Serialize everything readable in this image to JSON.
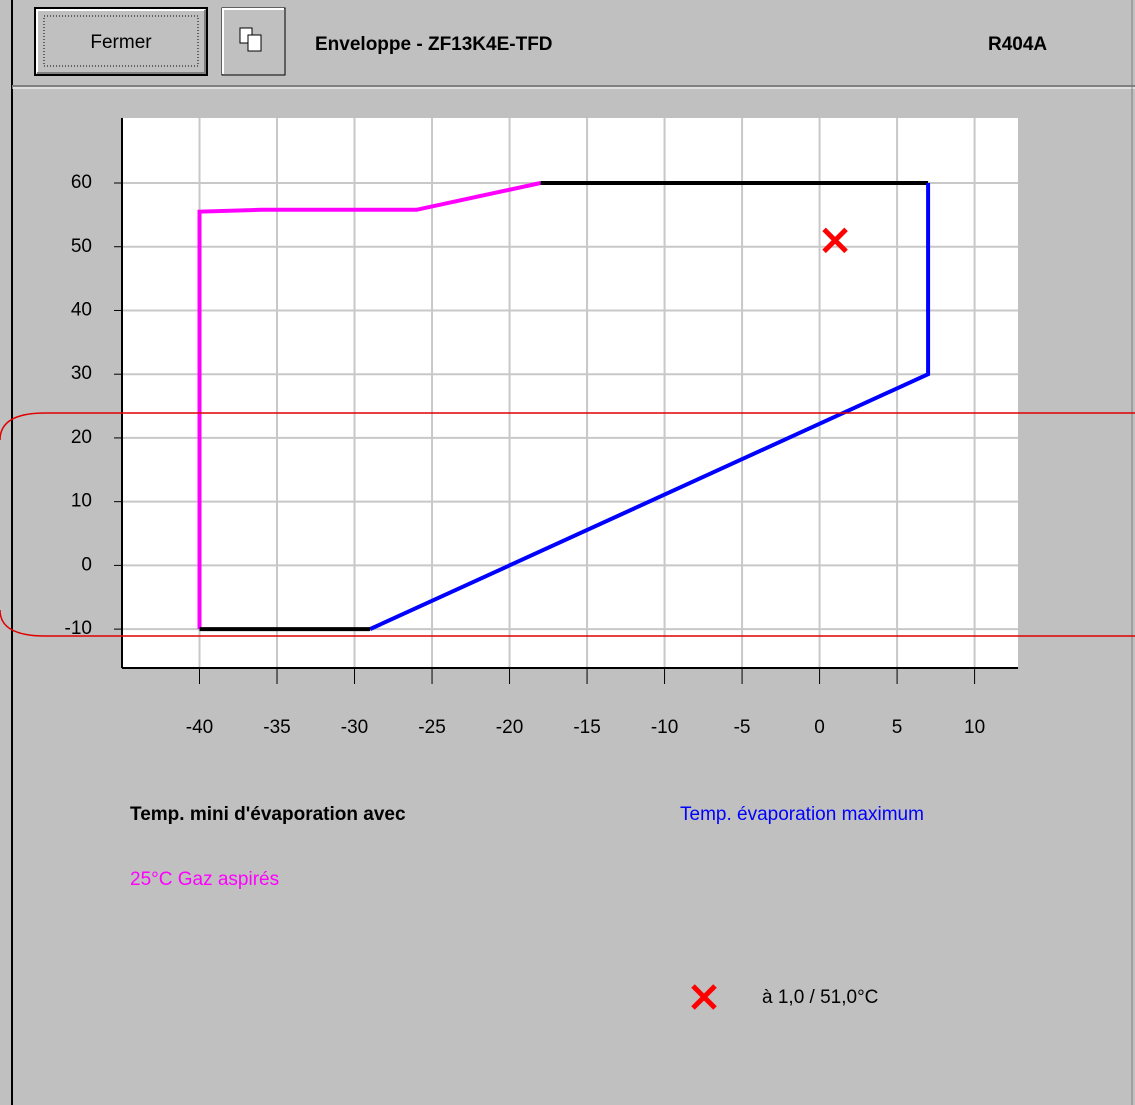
{
  "toolbar": {
    "close_button": "Fermer",
    "title": "Enveloppe - ZF13K4E-TFD",
    "refrigerant": "R404A"
  },
  "chart_data": {
    "type": "line",
    "xlim": [
      -45,
      12.8
    ],
    "ylim": [
      -16.1,
      70.2
    ],
    "xticks": [
      -40,
      -35,
      -30,
      -25,
      -20,
      -15,
      -10,
      -5,
      0,
      5,
      10
    ],
    "yticks": [
      -10,
      0,
      10,
      20,
      30,
      40,
      50,
      60
    ],
    "grid": true,
    "legend_heading": "Temp. mini d'évaporation avec",
    "series": [
      {
        "name": "25°C Gaz aspirés",
        "color": "#ff00ff",
        "x": [
          -40,
          -40,
          -36,
          -26,
          -18
        ],
        "values": [
          -10,
          55.5,
          55.8,
          55.8,
          60
        ]
      },
      {
        "color": "#000000",
        "x": [
          -18,
          7
        ],
        "values": [
          60,
          60
        ]
      },
      {
        "name": "Temp. évaporation maximum",
        "color": "#0000ff",
        "x": [
          7,
          7,
          -29
        ],
        "values": [
          60,
          30,
          -10
        ]
      },
      {
        "color": "#000000",
        "x": [
          -29,
          -40
        ],
        "values": [
          -10,
          -10
        ]
      }
    ],
    "marker": {
      "x": 1,
      "y": 51,
      "color": "#ff0000",
      "label": "à 1,0 / 51,0°C"
    }
  }
}
